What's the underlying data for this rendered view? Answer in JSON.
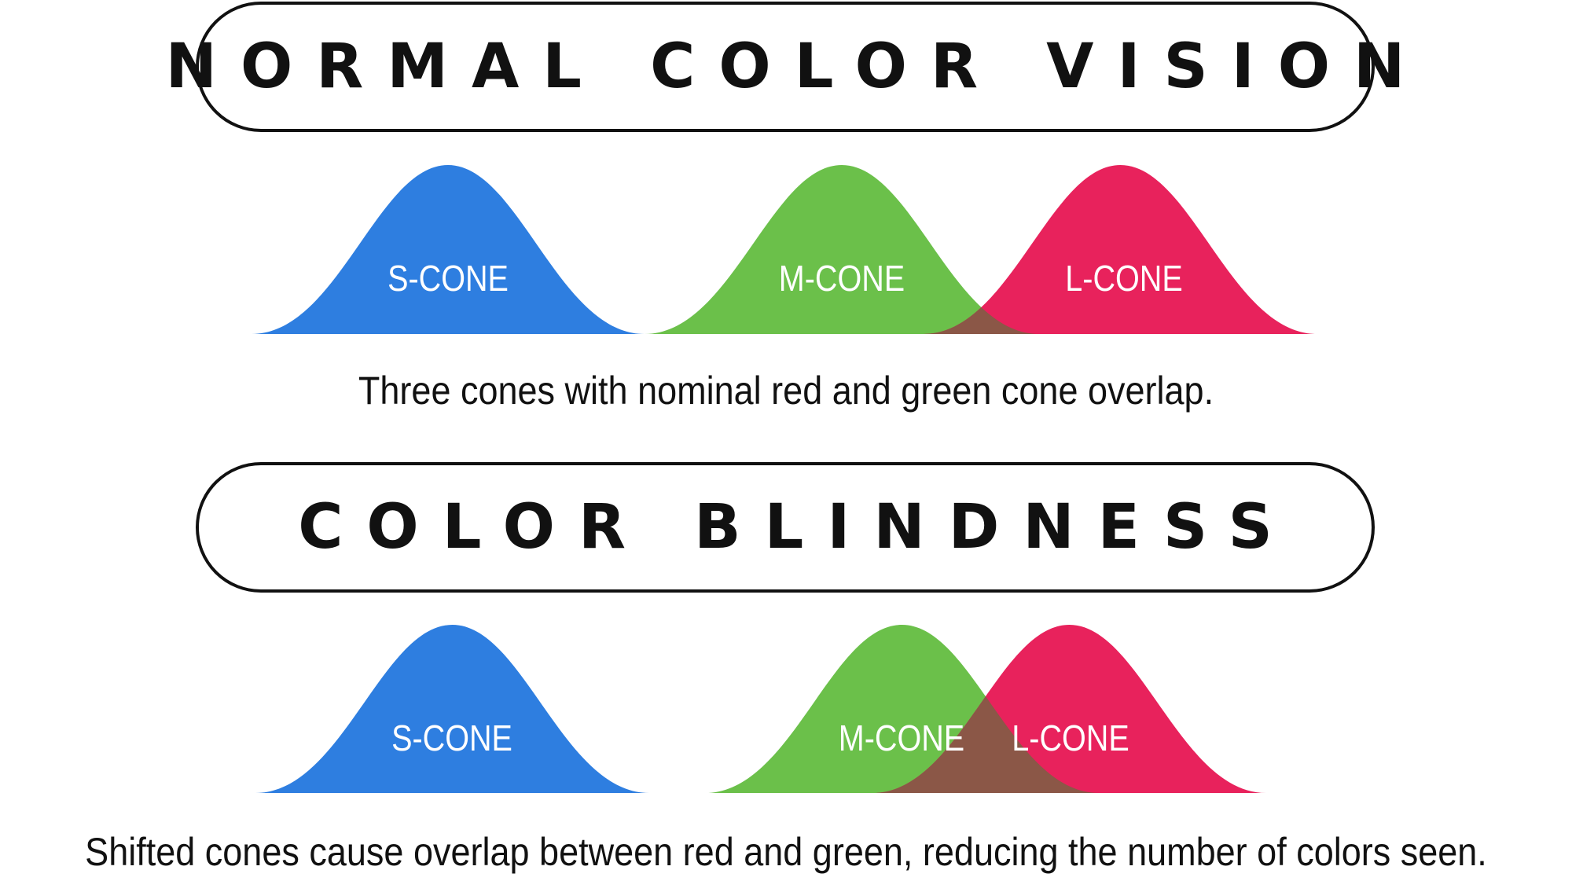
{
  "sections": [
    {
      "title": "NORMAL COLOR VISION",
      "cones": [
        {
          "name": "S-CONE",
          "color": "#2e7ee0"
        },
        {
          "name": "M-CONE",
          "color": "#6bc04a"
        },
        {
          "name": "L-CONE",
          "color": "#e8225c"
        }
      ],
      "overlap_color": "#8b5747",
      "caption": "Three cones with nominal red and green cone overlap."
    },
    {
      "title": "COLOR BLINDNESS",
      "cones": [
        {
          "name": "S-CONE",
          "color": "#2e7ee0"
        },
        {
          "name": "M-CONE",
          "color": "#6bc04a"
        },
        {
          "name": "L-CONE",
          "color": "#e8225c"
        }
      ],
      "overlap_color": "#8b5747",
      "caption": "Shifted cones cause overlap between red and green, reducing the number of colors seen."
    }
  ]
}
